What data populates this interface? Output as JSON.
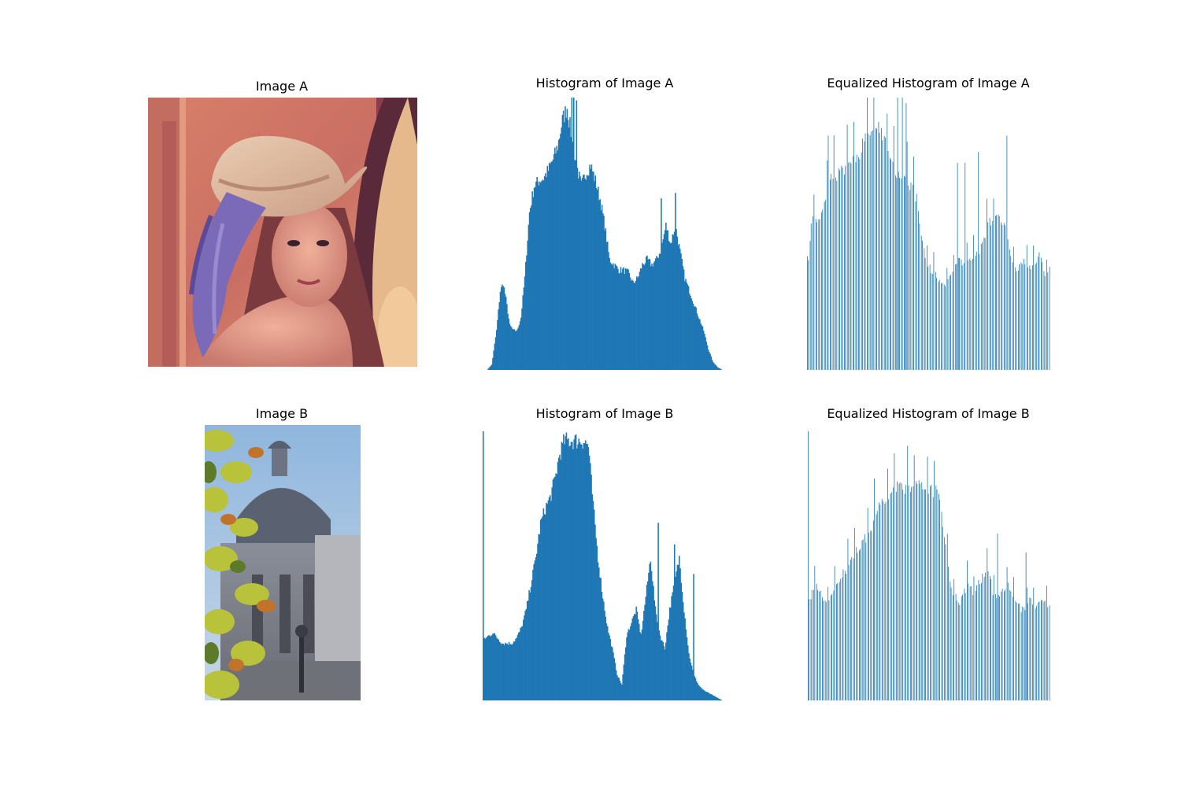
{
  "figure": {
    "colors": {
      "bar": "#1f77b4",
      "background": "#ffffff"
    }
  },
  "panels": {
    "image_a": {
      "title": "Image A",
      "description": "photo: woman in a wide-brim hat with a purple feather, warm pink/orange tones"
    },
    "image_b": {
      "title": "Image B",
      "description": "photo: yellow-green autumn leaves in front of an ornate domed stone building, blue sky"
    }
  },
  "chart_data": [
    {
      "type": "bar",
      "title": "Histogram of Image A",
      "axis": "off",
      "x_range": [
        0,
        255
      ],
      "sparse": false,
      "profile_points": [
        [
          0,
          0
        ],
        [
          5,
          0.02
        ],
        [
          10,
          0.15
        ],
        [
          14,
          0.3
        ],
        [
          17,
          0.33
        ],
        [
          20,
          0.27
        ],
        [
          24,
          0.17
        ],
        [
          28,
          0.15
        ],
        [
          32,
          0.15
        ],
        [
          36,
          0.2
        ],
        [
          40,
          0.35
        ],
        [
          45,
          0.6
        ],
        [
          50,
          0.7
        ],
        [
          55,
          0.72
        ],
        [
          60,
          0.73
        ],
        [
          65,
          0.76
        ],
        [
          70,
          0.8
        ],
        [
          75,
          0.85
        ],
        [
          80,
          0.95
        ],
        [
          85,
          1.0
        ],
        [
          90,
          0.88
        ],
        [
          95,
          0.78
        ],
        [
          100,
          0.7
        ],
        [
          105,
          0.75
        ],
        [
          110,
          0.78
        ],
        [
          115,
          0.72
        ],
        [
          120,
          0.65
        ],
        [
          125,
          0.55
        ],
        [
          130,
          0.42
        ],
        [
          135,
          0.4
        ],
        [
          140,
          0.38
        ],
        [
          145,
          0.38
        ],
        [
          150,
          0.37
        ],
        [
          155,
          0.33
        ],
        [
          160,
          0.35
        ],
        [
          165,
          0.4
        ],
        [
          170,
          0.42
        ],
        [
          175,
          0.4
        ],
        [
          180,
          0.42
        ],
        [
          185,
          0.46
        ],
        [
          190,
          0.55
        ],
        [
          195,
          0.48
        ],
        [
          200,
          0.55
        ],
        [
          205,
          0.45
        ],
        [
          210,
          0.35
        ],
        [
          215,
          0.3
        ],
        [
          220,
          0.25
        ],
        [
          225,
          0.2
        ],
        [
          230,
          0.15
        ],
        [
          235,
          0.08
        ],
        [
          240,
          0.03
        ],
        [
          245,
          0.01
        ],
        [
          250,
          0
        ]
      ],
      "spikes": [
        [
          90,
          1.0
        ],
        [
          92,
          1.0
        ],
        [
          95,
          0.99
        ],
        [
          185,
          0.63
        ],
        [
          200,
          0.65
        ]
      ]
    },
    {
      "type": "bar",
      "title": "Equalized Histogram of Image A",
      "axis": "off",
      "x_range": [
        0,
        255
      ],
      "sparse": true,
      "profile_points": [
        [
          0,
          0.38
        ],
        [
          5,
          0.58
        ],
        [
          10,
          0.55
        ],
        [
          15,
          0.6
        ],
        [
          20,
          0.65
        ],
        [
          25,
          0.72
        ],
        [
          30,
          0.74
        ],
        [
          35,
          0.75
        ],
        [
          40,
          0.76
        ],
        [
          45,
          0.78
        ],
        [
          50,
          0.8
        ],
        [
          55,
          0.82
        ],
        [
          60,
          0.88
        ],
        [
          65,
          0.92
        ],
        [
          70,
          0.95
        ],
        [
          75,
          0.93
        ],
        [
          80,
          0.9
        ],
        [
          85,
          0.82
        ],
        [
          90,
          0.78
        ],
        [
          95,
          0.75
        ],
        [
          100,
          0.74
        ],
        [
          105,
          0.72
        ],
        [
          110,
          0.7
        ],
        [
          115,
          0.65
        ],
        [
          120,
          0.5
        ],
        [
          125,
          0.42
        ],
        [
          130,
          0.38
        ],
        [
          135,
          0.36
        ],
        [
          140,
          0.34
        ],
        [
          145,
          0.33
        ],
        [
          150,
          0.35
        ],
        [
          155,
          0.38
        ],
        [
          160,
          0.42
        ],
        [
          165,
          0.4
        ],
        [
          170,
          0.42
        ],
        [
          175,
          0.44
        ],
        [
          180,
          0.45
        ],
        [
          185,
          0.48
        ],
        [
          190,
          0.55
        ],
        [
          195,
          0.57
        ],
        [
          200,
          0.58
        ],
        [
          205,
          0.56
        ],
        [
          210,
          0.52
        ],
        [
          215,
          0.4
        ],
        [
          220,
          0.38
        ],
        [
          225,
          0.4
        ],
        [
          230,
          0.42
        ],
        [
          235,
          0.38
        ],
        [
          240,
          0.4
        ],
        [
          245,
          0.45
        ],
        [
          250,
          0.35
        ],
        [
          255,
          0.38
        ]
      ],
      "spikes": [
        [
          22,
          0.86
        ],
        [
          95,
          1.0
        ],
        [
          100,
          1.0
        ],
        [
          104,
          0.98
        ],
        [
          158,
          0.76
        ],
        [
          166,
          0.76
        ],
        [
          180,
          0.8
        ],
        [
          210,
          0.86
        ]
      ]
    },
    {
      "type": "bar",
      "title": "Histogram of Image B",
      "axis": "off",
      "x_range": [
        0,
        255
      ],
      "sparse": false,
      "profile_points": [
        [
          0,
          0.24
        ],
        [
          3,
          0.24
        ],
        [
          6,
          0.25
        ],
        [
          10,
          0.26
        ],
        [
          15,
          0.24
        ],
        [
          20,
          0.22
        ],
        [
          25,
          0.22
        ],
        [
          30,
          0.22
        ],
        [
          35,
          0.24
        ],
        [
          40,
          0.28
        ],
        [
          45,
          0.35
        ],
        [
          50,
          0.45
        ],
        [
          55,
          0.55
        ],
        [
          60,
          0.68
        ],
        [
          65,
          0.74
        ],
        [
          70,
          0.78
        ],
        [
          75,
          0.85
        ],
        [
          80,
          0.95
        ],
        [
          85,
          1.0
        ],
        [
          90,
          1.0
        ],
        [
          95,
          1.0
        ],
        [
          100,
          1.0
        ],
        [
          105,
          1.0
        ],
        [
          110,
          0.98
        ],
        [
          115,
          0.75
        ],
        [
          120,
          0.55
        ],
        [
          125,
          0.4
        ],
        [
          130,
          0.28
        ],
        [
          135,
          0.2
        ],
        [
          140,
          0.1
        ],
        [
          145,
          0.06
        ],
        [
          150,
          0.25
        ],
        [
          155,
          0.3
        ],
        [
          160,
          0.35
        ],
        [
          165,
          0.25
        ],
        [
          170,
          0.4
        ],
        [
          175,
          0.55
        ],
        [
          180,
          0.35
        ],
        [
          185,
          0.25
        ],
        [
          190,
          0.2
        ],
        [
          195,
          0.35
        ],
        [
          200,
          0.45
        ],
        [
          205,
          0.55
        ],
        [
          210,
          0.35
        ],
        [
          215,
          0.18
        ],
        [
          220,
          0.1
        ],
        [
          225,
          0.06
        ],
        [
          230,
          0.04
        ],
        [
          235,
          0.03
        ],
        [
          240,
          0.02
        ],
        [
          245,
          0.01
        ],
        [
          250,
          0
        ]
      ],
      "spikes": [
        [
          0,
          1.0
        ],
        [
          183,
          0.66
        ],
        [
          200,
          0.58
        ],
        [
          220,
          0.47
        ]
      ]
    },
    {
      "type": "bar",
      "title": "Equalized Histogram of Image B",
      "axis": "off",
      "x_range": [
        0,
        255
      ],
      "sparse": true,
      "profile_points": [
        [
          0,
          0.38
        ],
        [
          5,
          0.42
        ],
        [
          10,
          0.44
        ],
        [
          15,
          0.4
        ],
        [
          20,
          0.38
        ],
        [
          25,
          0.4
        ],
        [
          30,
          0.46
        ],
        [
          35,
          0.48
        ],
        [
          40,
          0.5
        ],
        [
          45,
          0.55
        ],
        [
          50,
          0.58
        ],
        [
          55,
          0.6
        ],
        [
          60,
          0.62
        ],
        [
          65,
          0.66
        ],
        [
          70,
          0.7
        ],
        [
          75,
          0.74
        ],
        [
          80,
          0.76
        ],
        [
          85,
          0.78
        ],
        [
          90,
          0.8
        ],
        [
          95,
          0.82
        ],
        [
          100,
          0.82
        ],
        [
          105,
          0.83
        ],
        [
          110,
          0.82
        ],
        [
          115,
          0.83
        ],
        [
          120,
          0.82
        ],
        [
          125,
          0.82
        ],
        [
          130,
          0.82
        ],
        [
          135,
          0.8
        ],
        [
          140,
          0.75
        ],
        [
          145,
          0.6
        ],
        [
          150,
          0.45
        ],
        [
          155,
          0.4
        ],
        [
          160,
          0.38
        ],
        [
          165,
          0.42
        ],
        [
          170,
          0.46
        ],
        [
          175,
          0.4
        ],
        [
          180,
          0.45
        ],
        [
          185,
          0.48
        ],
        [
          190,
          0.5
        ],
        [
          195,
          0.42
        ],
        [
          200,
          0.4
        ],
        [
          205,
          0.42
        ],
        [
          210,
          0.45
        ],
        [
          215,
          0.4
        ],
        [
          220,
          0.38
        ],
        [
          225,
          0.35
        ],
        [
          230,
          0.36
        ],
        [
          235,
          0.4
        ],
        [
          240,
          0.35
        ],
        [
          245,
          0.38
        ],
        [
          250,
          0.38
        ],
        [
          255,
          0.36
        ]
      ],
      "spikes": [
        [
          0,
          1.0
        ],
        [
          200,
          0.62
        ],
        [
          230,
          0.55
        ]
      ]
    }
  ]
}
